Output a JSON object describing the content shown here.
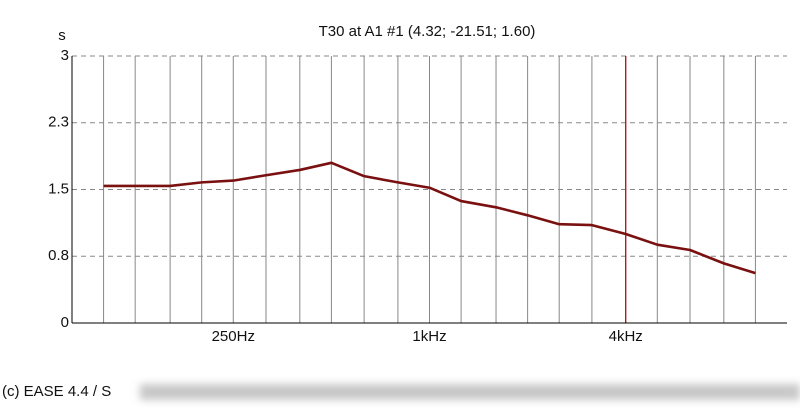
{
  "chart_data": {
    "type": "line",
    "title": "T30 at A1 #1  (4.32; -21.51; 1.60)",
    "y_label": "s",
    "footer": "(c) EASE 4.4  / S",
    "x": [
      100,
      125,
      160,
      200,
      250,
      315,
      400,
      500,
      630,
      800,
      1000,
      1250,
      1600,
      2000,
      2500,
      3150,
      4000,
      5000,
      6300,
      8000,
      10000
    ],
    "series": [
      {
        "name": "T30",
        "color": "#7a1010",
        "values": [
          1.54,
          1.54,
          1.54,
          1.58,
          1.6,
          1.66,
          1.72,
          1.8,
          1.65,
          1.58,
          1.52,
          1.37,
          1.3,
          1.21,
          1.11,
          1.1,
          1.0,
          0.88,
          0.82,
          0.67,
          0.56
        ]
      }
    ],
    "xlim": [
      80,
      12500
    ],
    "xscale": "log",
    "xticks": [
      {
        "value": 250,
        "label": "250Hz"
      },
      {
        "value": 1000,
        "label": "1kHz"
      },
      {
        "value": 4000,
        "label": "4kHz"
      }
    ],
    "x_minor_ticks": [
      100,
      125,
      160,
      200,
      315,
      400,
      500,
      630,
      800,
      1250,
      1600,
      2000,
      2500,
      3150,
      5000,
      6300,
      8000,
      10000
    ],
    "cursor_x": 4000,
    "cursor_color": "#c00000",
    "ylim": [
      0,
      3
    ],
    "yticks": [
      0,
      {
        "value": 0.75,
        "label": "0.8"
      },
      1.5,
      {
        "value": 2.25,
        "label": "2.3"
      },
      3
    ],
    "grid": true
  }
}
